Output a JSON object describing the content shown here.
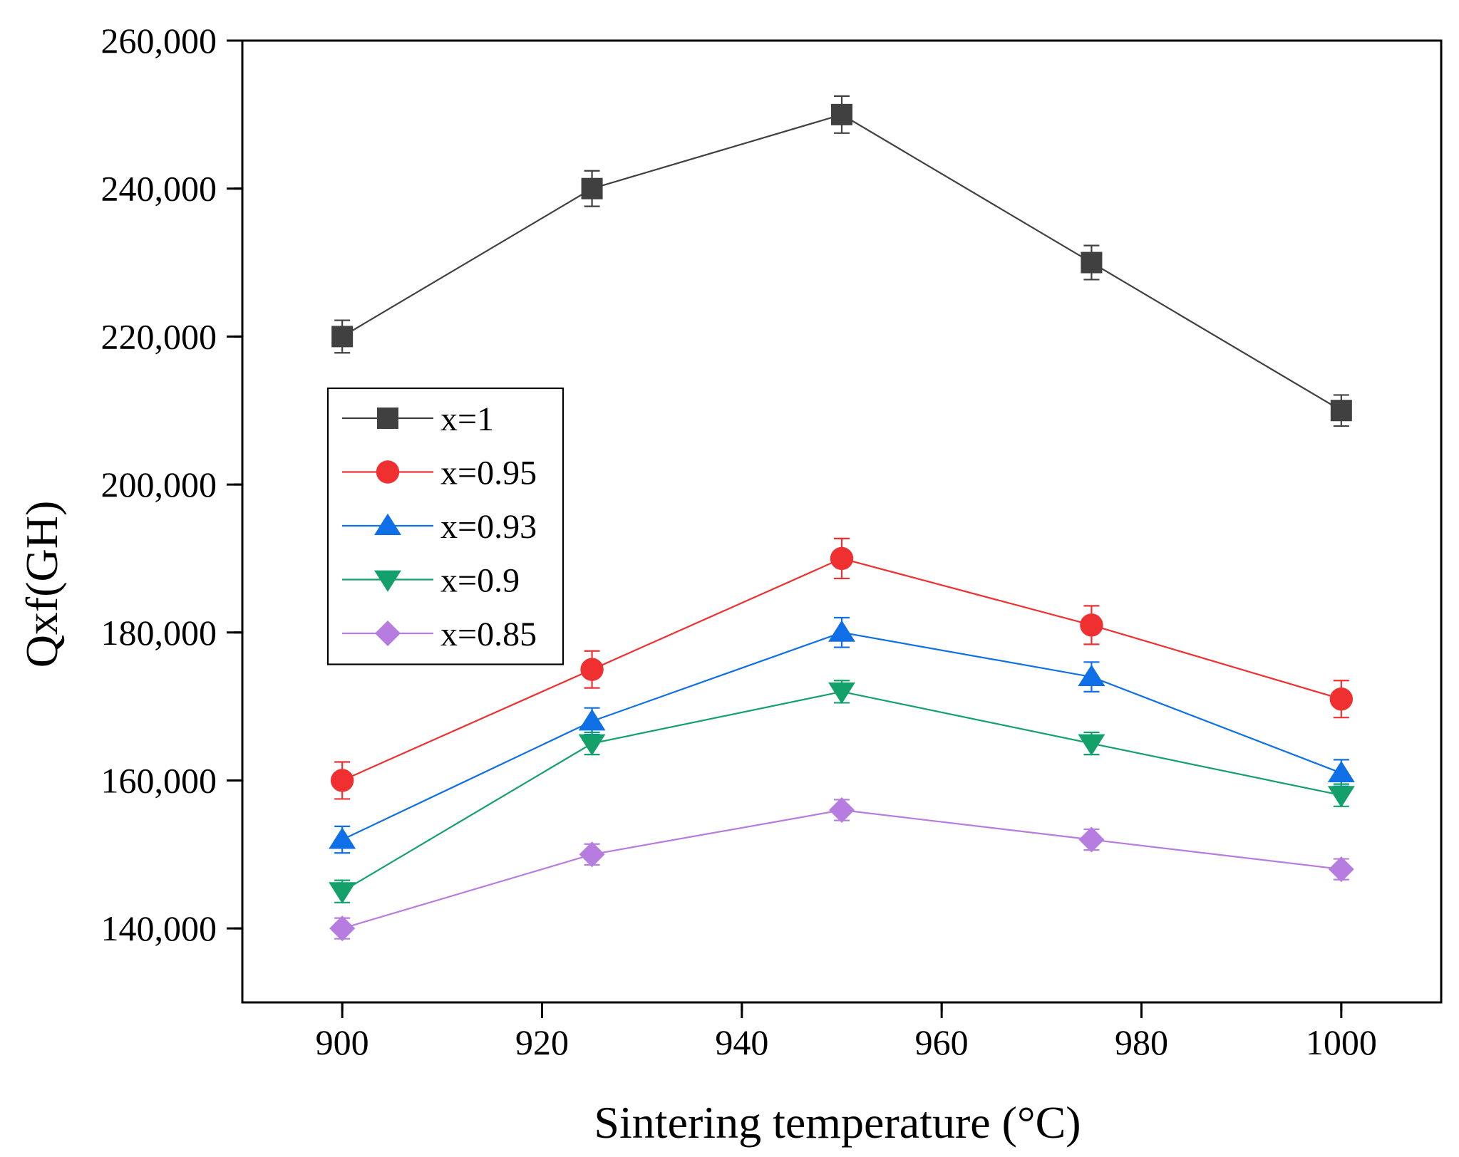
{
  "chart_data": {
    "type": "line",
    "title": "",
    "xlabel": "Sintering temperature (°C)",
    "ylabel": "Qxf(GH)",
    "xlim": [
      890,
      1010
    ],
    "ylim": [
      130000,
      260000
    ],
    "xticks": [
      900,
      920,
      940,
      960,
      980,
      1000
    ],
    "xtick_labels": [
      "900",
      "920",
      "940",
      "960",
      "980",
      "1000"
    ],
    "yticks": [
      140000,
      160000,
      180000,
      200000,
      220000,
      240000,
      260000
    ],
    "ytick_labels": [
      "140,000",
      "160,000",
      "180,000",
      "200,000",
      "220,000",
      "240,000",
      "260,000"
    ],
    "grid": false,
    "legend_position": "middle-left",
    "x": [
      900,
      925,
      950,
      975,
      1000
    ],
    "series": [
      {
        "name": "x=1",
        "color": "#404040",
        "marker": "square",
        "values": [
          220000,
          240000,
          250000,
          230000,
          210000
        ],
        "errors": [
          2200,
          2400,
          2500,
          2300,
          2100
        ]
      },
      {
        "name": "x=0.95",
        "color": "#f03030",
        "marker": "circle",
        "values": [
          160000,
          175000,
          190000,
          181000,
          171000
        ],
        "errors": [
          2500,
          2500,
          2700,
          2600,
          2500
        ]
      },
      {
        "name": "x=0.93",
        "color": "#0e6fe6",
        "marker": "triangle-up",
        "values": [
          152000,
          168000,
          180000,
          174000,
          161000
        ],
        "errors": [
          1800,
          1800,
          2000,
          2000,
          1800
        ]
      },
      {
        "name": "x=0.9",
        "color": "#14a06a",
        "marker": "triangle-down",
        "values": [
          145000,
          165000,
          172000,
          165000,
          158000
        ],
        "errors": [
          1500,
          1500,
          1500,
          1500,
          1500
        ]
      },
      {
        "name": "x=0.85",
        "color": "#b67ce0",
        "marker": "diamond",
        "values": [
          140000,
          150000,
          156000,
          152000,
          148000
        ],
        "errors": [
          1400,
          1400,
          1400,
          1400,
          1400
        ]
      }
    ]
  }
}
